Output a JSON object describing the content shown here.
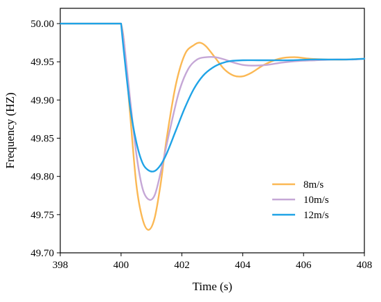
{
  "chart_data": {
    "type": "line",
    "xlabel": "Time (s)",
    "ylabel": "Frequency (HZ)",
    "xlim": [
      398,
      408
    ],
    "ylim": [
      49.7,
      50.02
    ],
    "x_ticks": [
      "398",
      "400",
      "402",
      "404",
      "406",
      "408"
    ],
    "y_ticks": [
      "49.70",
      "49.75",
      "49.80",
      "49.85",
      "49.90",
      "49.95",
      "50.00"
    ],
    "grid": false,
    "legend_position": "lower-right",
    "series": [
      {
        "name": "8m/s",
        "color": "#FBB854",
        "x": [
          398,
          400,
          400.1,
          400.3,
          400.5,
          400.7,
          400.9,
          401.1,
          401.3,
          401.5,
          401.8,
          402.1,
          402.4,
          402.6,
          402.8,
          403.1,
          403.4,
          403.7,
          404.0,
          404.3,
          404.7,
          405.2,
          405.7,
          406.2,
          406.8,
          407.4,
          408
        ],
        "y": [
          50.0,
          50.0,
          49.975,
          49.88,
          49.79,
          49.745,
          49.73,
          49.745,
          49.79,
          49.85,
          49.92,
          49.96,
          49.972,
          49.975,
          49.97,
          49.955,
          49.94,
          49.932,
          49.931,
          49.936,
          49.946,
          49.954,
          49.956,
          49.954,
          49.953,
          49.953,
          49.954
        ]
      },
      {
        "name": "10m/s",
        "color": "#C5A7D6",
        "x": [
          398,
          400,
          400.1,
          400.3,
          400.5,
          400.7,
          400.9,
          401.1,
          401.3,
          401.6,
          401.9,
          402.2,
          402.5,
          402.8,
          403.1,
          403.4,
          403.7,
          404.0,
          404.4,
          404.8,
          405.3,
          405.8,
          406.4,
          407.0,
          407.6,
          408
        ],
        "y": [
          50.0,
          50.0,
          49.975,
          49.9,
          49.83,
          49.785,
          49.77,
          49.775,
          49.805,
          49.86,
          49.91,
          49.94,
          49.953,
          49.956,
          49.956,
          49.953,
          49.949,
          49.946,
          49.945,
          49.946,
          49.949,
          49.951,
          49.952,
          49.953,
          49.953,
          49.954
        ]
      },
      {
        "name": "12m/s",
        "color": "#1FA3E6",
        "x": [
          398,
          400,
          400.1,
          400.3,
          400.5,
          400.7,
          400.9,
          401.1,
          401.3,
          401.5,
          401.8,
          402.1,
          402.4,
          402.7,
          403.0,
          403.3,
          403.6,
          404.0,
          404.5,
          405.0,
          405.6,
          406.2,
          406.8,
          407.4,
          408
        ],
        "y": [
          50.0,
          50.0,
          49.96,
          49.89,
          49.845,
          49.818,
          49.808,
          49.807,
          49.815,
          49.83,
          49.86,
          49.89,
          49.915,
          49.932,
          49.942,
          49.948,
          49.951,
          49.952,
          49.952,
          49.952,
          49.952,
          49.953,
          49.953,
          49.953,
          49.954
        ]
      }
    ]
  }
}
